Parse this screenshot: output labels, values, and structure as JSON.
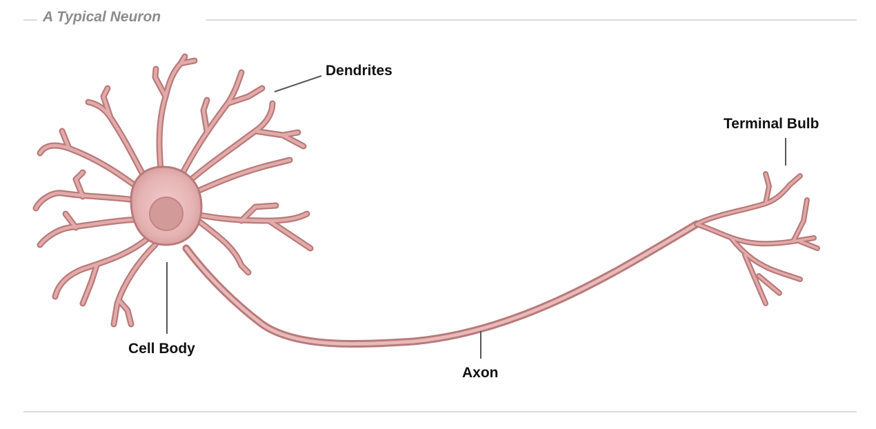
{
  "figure": {
    "title": "A Typical Neuron",
    "labels": {
      "dendrites": "Dendrites",
      "terminal_bulb": "Terminal Bulb",
      "cell_body": "Cell Body",
      "axon": "Axon"
    },
    "colors": {
      "membrane": "#c88a8a",
      "membrane_light": "#e9b9b9",
      "nucleus": "#d39a9a",
      "leader_line": "#555555",
      "frame_rule": "#dcdcdc",
      "title_text": "#8c8c8c"
    }
  }
}
